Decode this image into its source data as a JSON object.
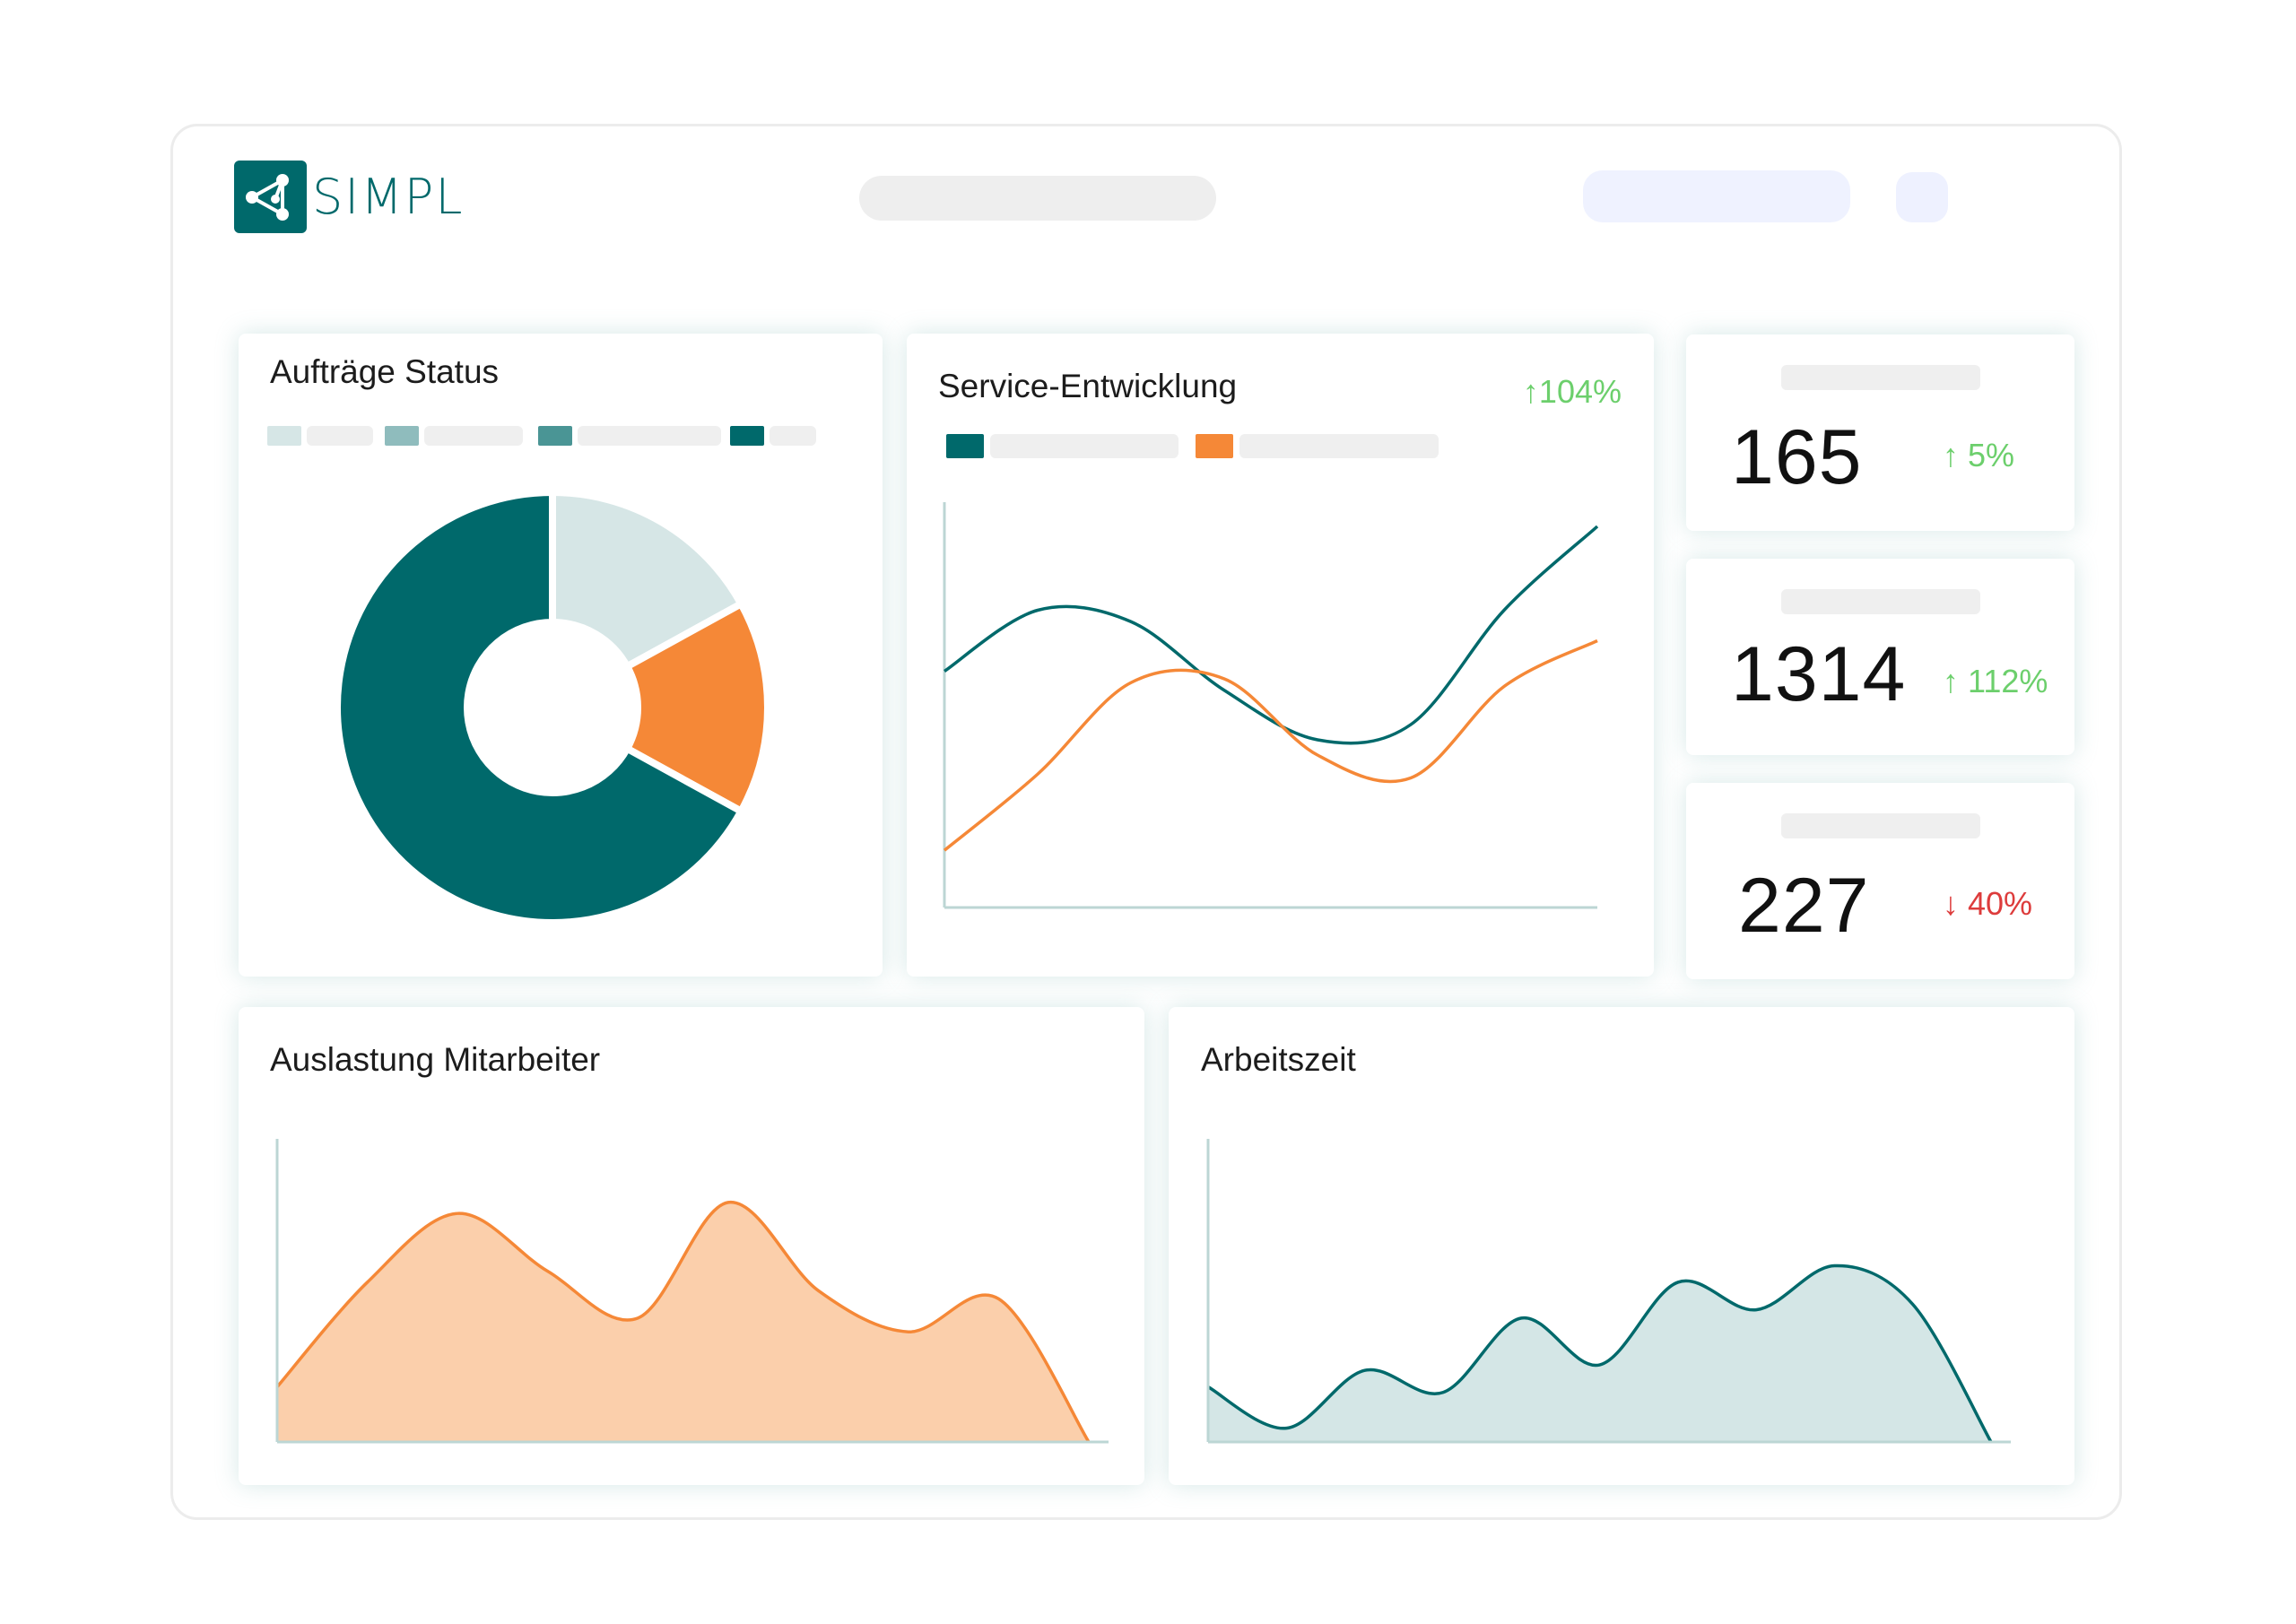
{
  "app": {
    "logo_text": "SIMPL",
    "logo_icon": "share-nodes-icon"
  },
  "colors": {
    "primary": "#00696b",
    "accent": "#f58837",
    "accent_fill": "#fbcfab",
    "teal_fill": "#d4e6e6",
    "positive": "#6ccf6c",
    "negative": "#dd3c3c"
  },
  "cards": {
    "orders": {
      "title": "Aufträge Status"
    },
    "service": {
      "title": "Service-Entwicklung",
      "trend": "↑104%"
    },
    "kpis": [
      {
        "value": "165",
        "trend": "↑ 5%",
        "direction": "up"
      },
      {
        "value": "1314",
        "trend": "↑ 112%",
        "direction": "up"
      },
      {
        "value": "227",
        "trend": "↓ 40%",
        "direction": "down"
      }
    ],
    "workload": {
      "title": "Auslastung Mitarbeiter"
    },
    "worktime": {
      "title": "Arbeitszeit"
    }
  },
  "chart_data": [
    {
      "type": "pie",
      "title": "Aufträge Status",
      "donut": true,
      "slices": [
        {
          "value": 17,
          "color": "#d6e6e6"
        },
        {
          "value": 16,
          "color": "#f58837"
        },
        {
          "value": 67,
          "color": "#00696b"
        }
      ]
    },
    {
      "type": "line",
      "title": "Service-Entwicklung",
      "x": [
        0,
        1,
        2,
        3,
        4,
        5,
        6,
        7
      ],
      "series": [
        {
          "color": "#00696b",
          "values": [
            62,
            78,
            75,
            57,
            44,
            48,
            78,
            100
          ]
        },
        {
          "color": "#f58837",
          "values": [
            15,
            35,
            59,
            60,
            40,
            34,
            58,
            70
          ]
        }
      ]
    },
    {
      "type": "area",
      "title": "Auslastung Mitarbeiter",
      "x": [
        0,
        1,
        2,
        3,
        4,
        5,
        6,
        7,
        8,
        9
      ],
      "series": [
        {
          "color": "#f58837",
          "values": [
            20,
            58,
            83,
            62,
            45,
            87,
            55,
            40,
            52,
            0
          ]
        }
      ]
    },
    {
      "type": "area",
      "title": "Arbeitszeit",
      "x": [
        0,
        1,
        2,
        3,
        4,
        5,
        6,
        7,
        8,
        9,
        10
      ],
      "series": [
        {
          "color": "#00696b",
          "values": [
            20,
            5,
            26,
            18,
            45,
            28,
            58,
            48,
            64,
            50,
            0
          ]
        }
      ]
    }
  ]
}
